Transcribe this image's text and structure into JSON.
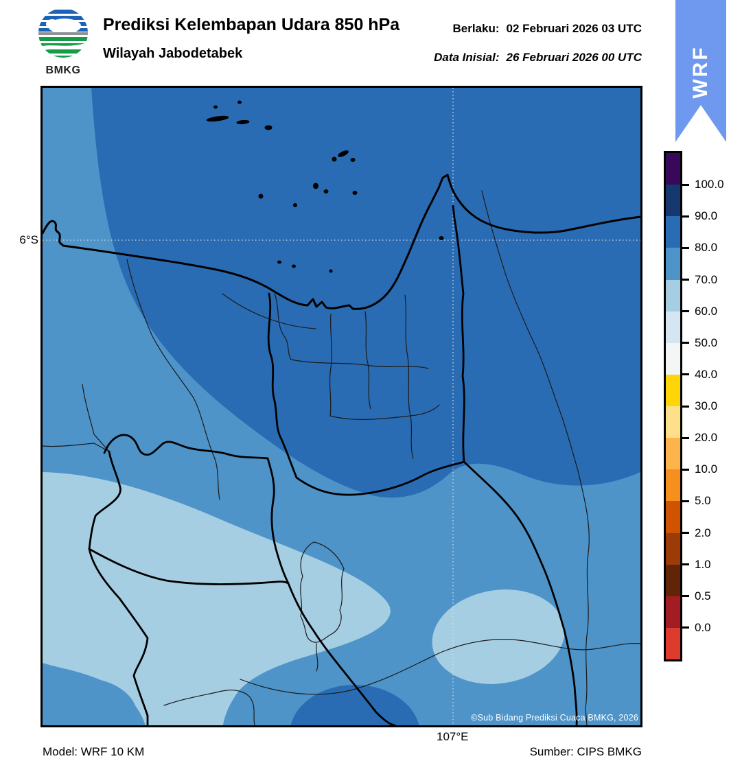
{
  "header": {
    "logo_text": "BMKG",
    "title": "Prediksi Kelembapan Udara 850 hPa",
    "subtitle": "Wilayah Jabodetabek",
    "valid_label": "Berlaku:",
    "valid_value": "02 Februari 2026 03 UTC",
    "init_label": "Data Inisial:",
    "init_value": "26 Februari 2026 00 UTC",
    "ribbon_label": "WRF"
  },
  "map": {
    "lat_tick_label": "6°S",
    "lon_tick_label": "107°E",
    "copyright": "©Sub Bidang Prediksi Cuaca BMKG, 2026"
  },
  "footer": {
    "model": "Model: WRF 10 KM",
    "source": "Sumber: CIPS BMKG"
  },
  "colors": {
    "ribbon": "#6e99ee",
    "rh_80_90": "#2a6cb4",
    "rh_70_80": "#4e94c9",
    "rh_60_70": "#a6cee3"
  },
  "colorbar": {
    "tick_labels": [
      "100.0",
      "90.0",
      "80.0",
      "70.0",
      "60.0",
      "50.0",
      "40.0",
      "30.0",
      "20.0",
      "10.0",
      "5.0",
      "2.0",
      "1.0",
      "0.5",
      "0.0"
    ],
    "cell_colors": [
      "#38085a",
      "#15386f",
      "#2a6cb4",
      "#4e94c9",
      "#a6cee3",
      "#d6e5f2",
      "#f4f6f5",
      "#fed507",
      "#fee08b",
      "#fdb44a",
      "#f5901e",
      "#cf5300",
      "#9a3b08",
      "#622406",
      "#a31c23",
      "#dc3b2e"
    ]
  },
  "chart_data": {
    "type": "heatmap",
    "title": "Prediksi Kelembapan Udara 850 hPa",
    "region": "Wilayah Jabodetabek",
    "variable": "Kelembapan udara (relative humidity) at 850 hPa, percent",
    "valid_time": "02 Februari 2026 03 UTC",
    "initial_time": "26 Februari 2026 00 UTC",
    "model": "WRF 10 KM",
    "source": "CIPS BMKG",
    "contour_levels": [
      0.0,
      0.5,
      1.0,
      2.0,
      5.0,
      10.0,
      20.0,
      30.0,
      40.0,
      50.0,
      60.0,
      70.0,
      80.0,
      90.0,
      100.0
    ],
    "palette_low_to_high": [
      "#dc3b2e",
      "#a31c23",
      "#622406",
      "#9a3b08",
      "#cf5300",
      "#f5901e",
      "#fdb44a",
      "#fee08b",
      "#fed507",
      "#f4f6f5",
      "#d6e5f2",
      "#a6cee3",
      "#4e94c9",
      "#2a6cb4",
      "#15386f",
      "#38085a"
    ],
    "gridlines": {
      "latitude": "6°S",
      "longitude": "107°E"
    },
    "legend_position": "right",
    "field_summary": [
      {
        "area": "Java Sea / northern half incl. Jakarta and Bekasi",
        "value_range_pct": "80-90"
      },
      {
        "area": "Narrow strip along western (left) map edge at top",
        "value_range_pct": "70-80"
      },
      {
        "area": "Southern half background (Bogor, Cianjur lowlands)",
        "value_range_pct": "70-80"
      },
      {
        "area": "Large lobe from western edge across south-west (Lebak/Bogor)",
        "value_range_pct": "60-70"
      },
      {
        "area": "Oval patch south-east of Bogor toward Cianjur",
        "value_range_pct": "60-70"
      },
      {
        "area": "Small oval at bottom-left corner",
        "value_range_pct": "70-80"
      },
      {
        "area": "Oval at bottom-centre of map",
        "value_range_pct": "80-90"
      }
    ]
  }
}
